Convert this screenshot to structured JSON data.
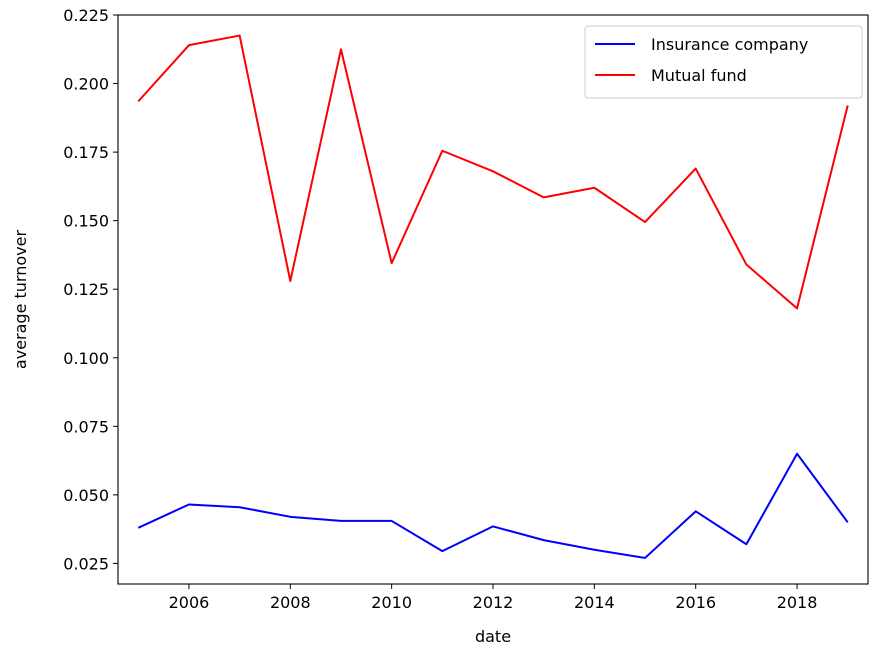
{
  "chart_data": {
    "type": "line",
    "xlabel": "date",
    "ylabel": "average turnover",
    "xlim": [
      2004.6,
      2019.4
    ],
    "ylim": [
      0.0175,
      0.225
    ],
    "x_ticks": [
      2006,
      2008,
      2010,
      2012,
      2014,
      2016,
      2018
    ],
    "x_tick_labels": [
      "2006",
      "2008",
      "2010",
      "2012",
      "2014",
      "2016",
      "2018"
    ],
    "y_ticks": [
      0.025,
      0.05,
      0.075,
      0.1,
      0.125,
      0.15,
      0.175,
      0.2,
      0.225
    ],
    "y_tick_labels": [
      "0.025",
      "0.050",
      "0.075",
      "0.100",
      "0.125",
      "0.150",
      "0.175",
      "0.200",
      "0.225"
    ],
    "grid": false,
    "legend_position": "top-right",
    "x": [
      2005,
      2006,
      2007,
      2008,
      2009,
      2010,
      2011,
      2012,
      2013,
      2014,
      2015,
      2016,
      2017,
      2018,
      2019
    ],
    "series": [
      {
        "name": "Insurance company",
        "color": "#0000ff",
        "values": [
          0.038,
          0.0465,
          0.0455,
          0.042,
          0.0405,
          0.0405,
          0.0295,
          0.0385,
          0.0335,
          0.03,
          0.027,
          0.044,
          0.032,
          0.065,
          0.04
        ]
      },
      {
        "name": "Mutual fund",
        "color": "#ff0000",
        "values": [
          0.1935,
          0.214,
          0.2175,
          0.128,
          0.2125,
          0.1345,
          0.1755,
          0.168,
          0.1585,
          0.162,
          0.1495,
          0.169,
          0.134,
          0.118,
          0.192
        ]
      }
    ]
  }
}
